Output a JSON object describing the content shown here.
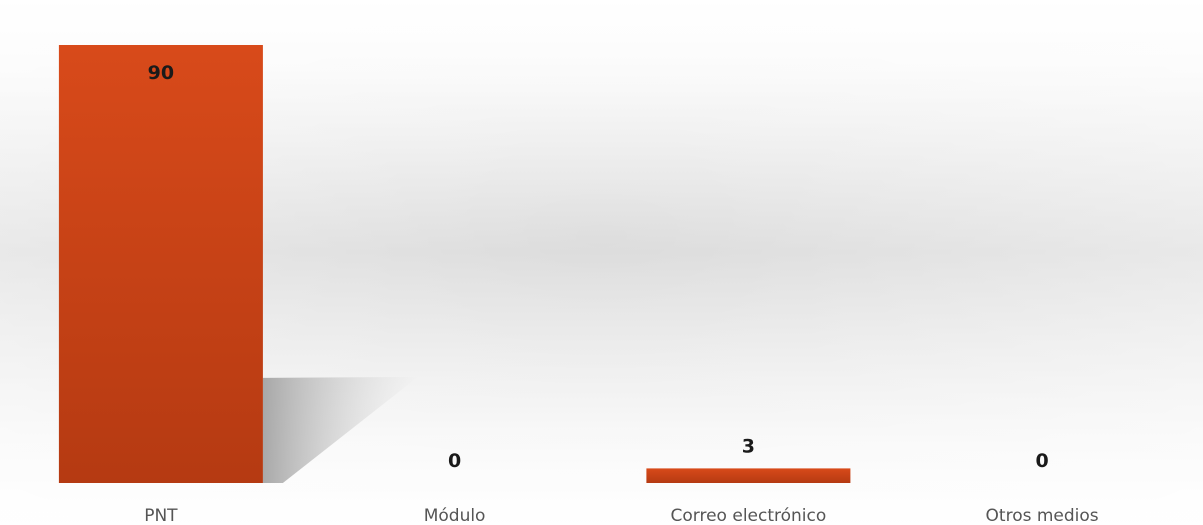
{
  "chart_data": {
    "type": "bar",
    "categories": [
      "PNT",
      "Módulo",
      "Correo electrónico",
      "Otros medios"
    ],
    "values": [
      90,
      0,
      3,
      0
    ],
    "data_labels": [
      "90",
      "0",
      "3",
      "0"
    ],
    "title": "",
    "xlabel": "",
    "ylabel": "",
    "ylim": [
      0,
      90
    ],
    "grid": false,
    "legend": "none",
    "colors": {
      "bar_top": "#d84a1a",
      "bar_bottom": "#b53a12",
      "background_mid": "#dedede",
      "background_edge": "#ffffff"
    }
  }
}
